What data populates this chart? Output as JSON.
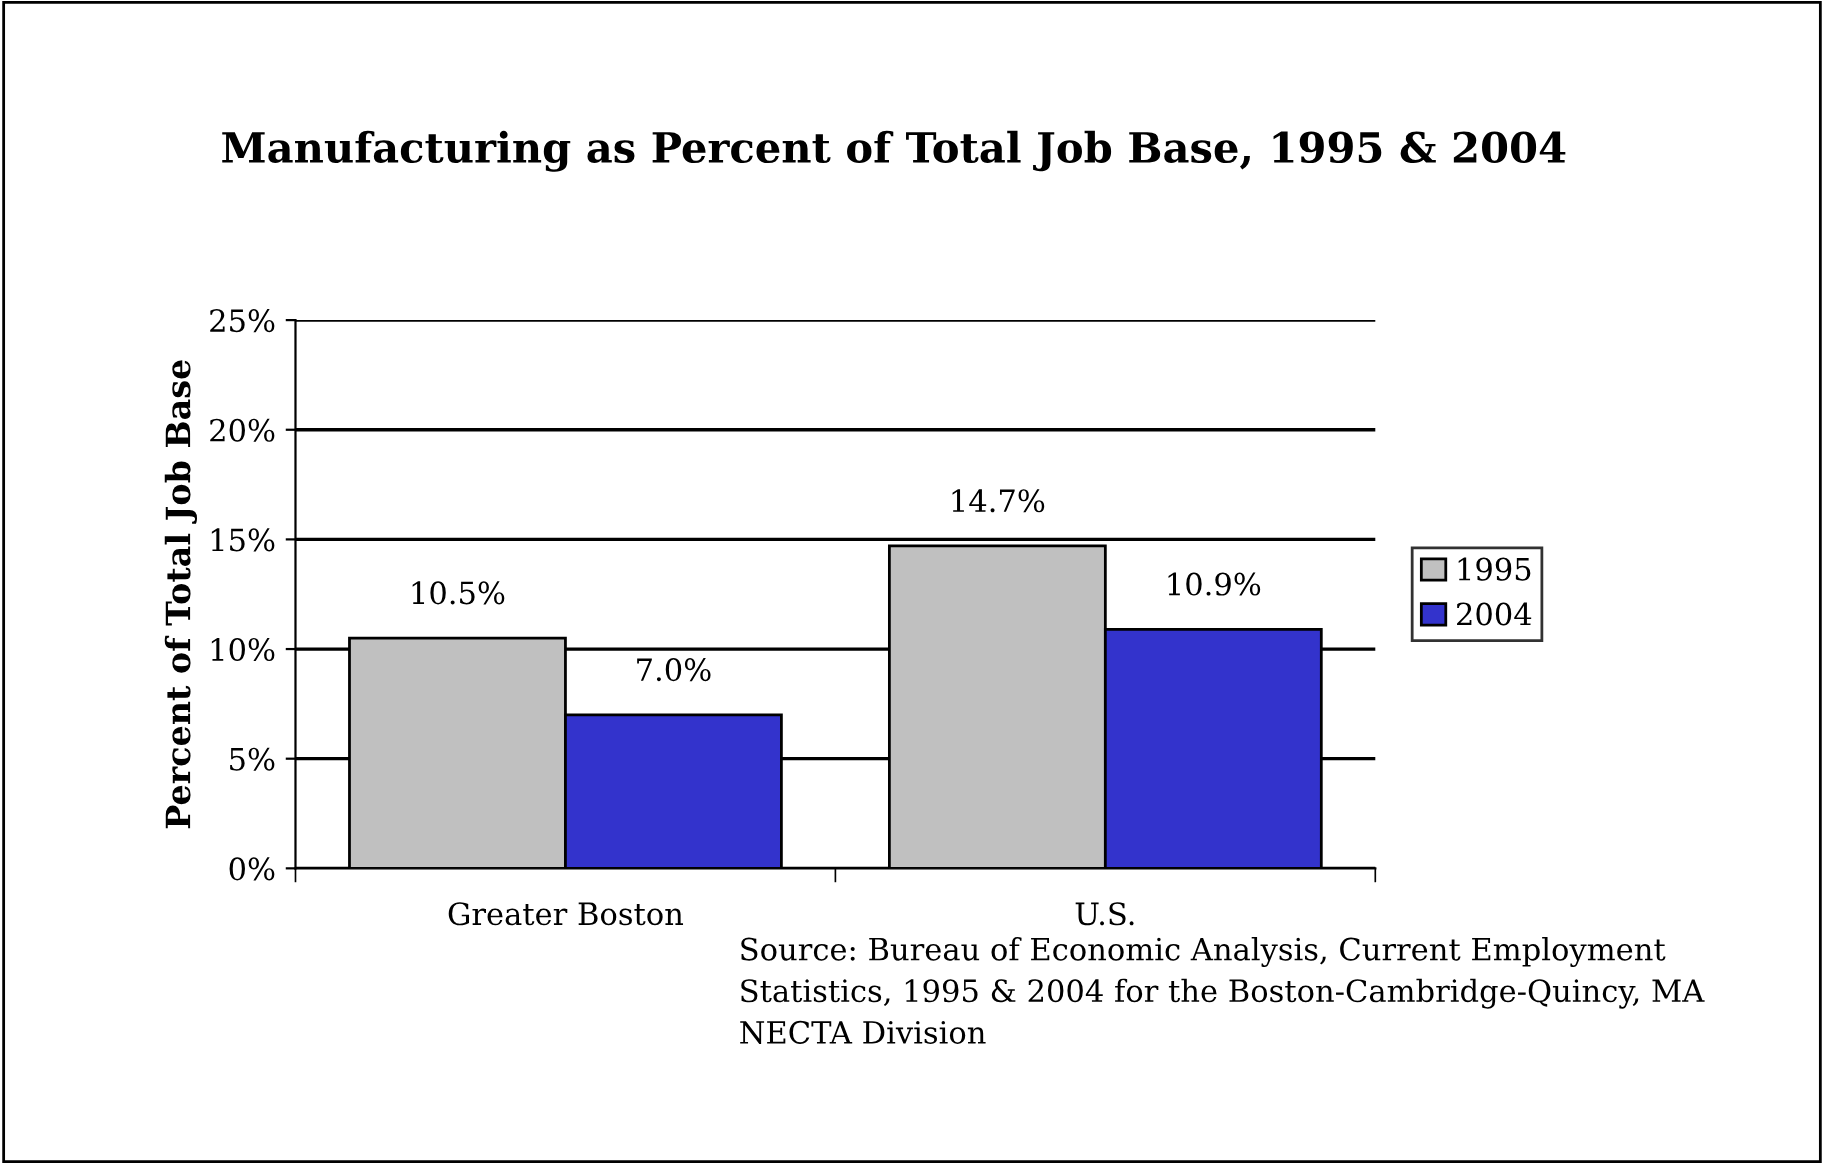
{
  "chart_data": {
    "type": "bar",
    "title": "Manufacturing as Percent of Total Job Base, 1995 & 2004",
    "ylabel": "Percent of Total Job Base",
    "categories": [
      "Greater Boston",
      "U.S."
    ],
    "series": [
      {
        "name": "1995",
        "color": "#c0c0c0",
        "values": [
          10.5,
          14.7
        ],
        "value_labels": [
          "10.5%",
          "14.7%"
        ]
      },
      {
        "name": "2004",
        "color": "#3333cc",
        "values": [
          7.0,
          10.9
        ],
        "value_labels": [
          "7.0%",
          "10.9%"
        ]
      }
    ],
    "ylim": [
      0,
      25
    ],
    "yticks": [
      {
        "value": 0,
        "label": "0%"
      },
      {
        "value": 5,
        "label": "5%"
      },
      {
        "value": 10,
        "label": "10%"
      },
      {
        "value": 15,
        "label": "15%"
      },
      {
        "value": 20,
        "label": "20%"
      },
      {
        "value": 25,
        "label": "25%"
      }
    ],
    "grid": "y",
    "legend": "right",
    "annotations": [
      "Source: Bureau of Economic Analysis, Current Employment Statistics, 1995 & 2004 for the Boston-Cambridge-Quincy, MA NECTA Division"
    ]
  }
}
